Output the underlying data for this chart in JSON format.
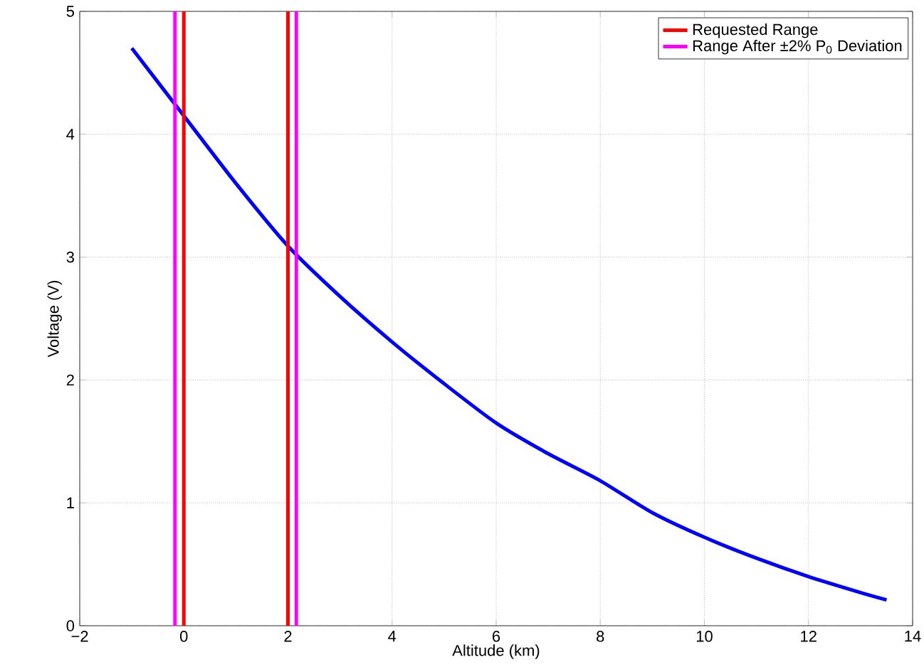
{
  "chart_data": {
    "type": "line",
    "xlabel": "Altitude (km)",
    "ylabel": "Voltage (V)",
    "xlim": [
      -2,
      14
    ],
    "ylim": [
      0,
      5
    ],
    "xticks": [
      {
        "value": -2,
        "label": "−2"
      },
      0,
      2,
      4,
      6,
      8,
      10,
      12,
      14
    ],
    "yticks": [
      0,
      1,
      2,
      3,
      4,
      5
    ],
    "grid": true,
    "legend": "top right",
    "marker": "none",
    "line_style": "solid",
    "series": [
      {
        "color": "#0000ff",
        "x": [
          -1,
          0,
          1,
          2,
          3,
          4,
          5,
          6,
          7,
          8,
          9,
          10,
          11,
          12,
          13,
          13.5
        ],
        "values": [
          4.7,
          4.15,
          3.6,
          3.09,
          2.68,
          2.31,
          1.97,
          1.65,
          1.4,
          1.18,
          0.92,
          0.72,
          0.55,
          0.4,
          0.27,
          0.21
        ]
      },
      {
        "name": "Requested Range",
        "color": "#ff0000",
        "x": [
          0,
          0
        ],
        "values": [
          5,
          0
        ]
      },
      {
        "color": "#ff0000",
        "x": [
          2,
          2
        ],
        "values": [
          5,
          0
        ]
      },
      {
        "name": "Range After ±2% P$_{0}$ Deviation",
        "color": "#ff00ff",
        "x": [
          -0.17,
          -0.17
        ],
        "values": [
          5,
          0
        ]
      },
      {
        "color": "#ff00ff",
        "x": [
          2.16,
          2.16
        ],
        "values": [
          5,
          0
        ]
      }
    ]
  }
}
